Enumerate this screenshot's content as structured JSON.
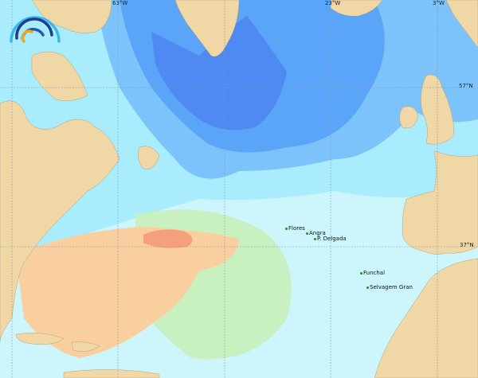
{
  "map": {
    "longitude_labels": [
      "63°W",
      "23°W",
      "3°W"
    ],
    "latitude_labels": [
      "57°N",
      "37°N"
    ],
    "places": [
      "Flores",
      "Angra",
      "P. Delgada",
      "Funchal",
      "Selvagem Gran"
    ],
    "colors": {
      "land": "#efd7a6",
      "deep_blue": "#4f8af3",
      "mid_blue": "#7cc3fb",
      "light_blue": "#a9ecfd",
      "pale_cyan": "#ccf6fb",
      "green": "#c9f0c0",
      "orange": "#f9cf9f",
      "red_orange": "#f5a07a"
    },
    "logo": "wave-arcs-logo"
  }
}
